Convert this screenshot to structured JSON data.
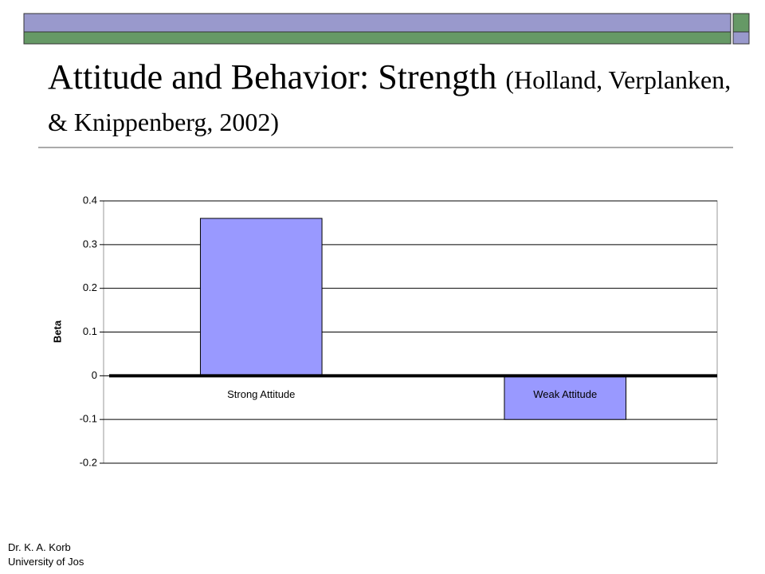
{
  "chart_data": {
    "type": "bar",
    "title": "Attitude and Behavior: Strength",
    "subtitle": "(Holland, Verplanken, & Knippenberg, 2002)",
    "y_label": "Beta",
    "categories": [
      "Strong Attitude",
      "Weak Attitude"
    ],
    "values": [
      0.36,
      -0.1
    ],
    "color": "#9999ff",
    "ylim": [
      -0.2,
      0.4
    ],
    "yticks": [
      -0.2,
      -0.1,
      0,
      0.1,
      0.2,
      0.3,
      0.4
    ],
    "grid": true
  },
  "footer": [
    "Dr. K. A. Korb",
    "University of Jos"
  ]
}
